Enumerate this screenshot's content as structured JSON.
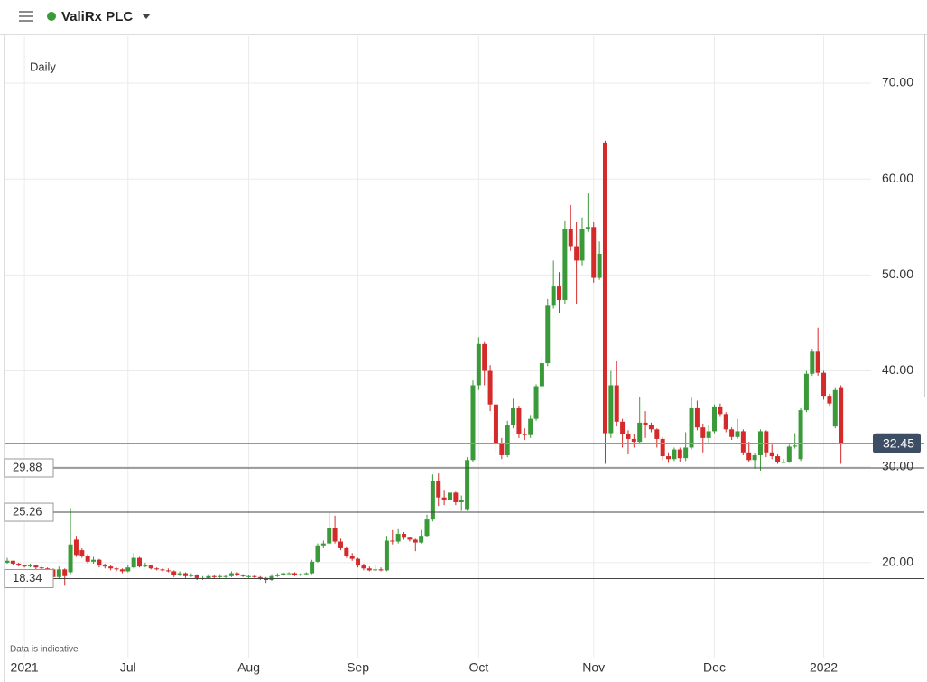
{
  "chart_data": {
    "type": "candlestick",
    "title": "ValiRx PLC",
    "subtitle": "Daily",
    "note": "Data is indicative",
    "up_color": "#3a9a3a",
    "down_color": "#d42a2a",
    "ylim": [
      10.1,
      74.9
    ],
    "yticks": [
      {
        "value": 20,
        "label": "20.00"
      },
      {
        "value": 30,
        "label": "30.00"
      },
      {
        "value": 40,
        "label": "40.00"
      },
      {
        "value": 50,
        "label": "50.00"
      },
      {
        "value": 60,
        "label": "60.00"
      },
      {
        "value": 70,
        "label": "70.00"
      }
    ],
    "grid": true,
    "last_price": 32.45,
    "price_lines": [
      29.88,
      25.26,
      18.34
    ],
    "categories": [
      null,
      null,
      null,
      "2021",
      null,
      null,
      null,
      null,
      null,
      null,
      null,
      null,
      null,
      null,
      null,
      null,
      null,
      null,
      null,
      null,
      null,
      "Jul",
      null,
      null,
      null,
      null,
      null,
      null,
      null,
      null,
      null,
      null,
      null,
      null,
      null,
      null,
      null,
      null,
      null,
      null,
      null,
      null,
      "Aug",
      null,
      null,
      null,
      null,
      null,
      null,
      null,
      null,
      null,
      null,
      null,
      null,
      null,
      null,
      null,
      null,
      null,
      null,
      "Sep",
      null,
      null,
      null,
      null,
      null,
      null,
      null,
      null,
      null,
      null,
      null,
      null,
      null,
      null,
      null,
      null,
      null,
      null,
      null,
      null,
      "Oct",
      null,
      null,
      null,
      null,
      null,
      null,
      null,
      null,
      null,
      null,
      null,
      null,
      null,
      null,
      null,
      null,
      null,
      null,
      null,
      "Nov",
      null,
      null,
      null,
      null,
      null,
      null,
      null,
      null,
      null,
      null,
      null,
      null,
      null,
      null,
      null,
      null,
      null,
      null,
      null,
      null,
      "Dec",
      null,
      null,
      null,
      null,
      null,
      null,
      null,
      null,
      null,
      null,
      null,
      null,
      null,
      null,
      null,
      null,
      null,
      null,
      "2022",
      null,
      null,
      null
    ],
    "candles": [
      [
        20.0,
        20.5,
        19.9,
        20.2
      ],
      [
        20.2,
        20.2,
        19.8,
        19.9
      ],
      [
        19.9,
        20.0,
        19.6,
        19.7
      ],
      [
        19.7,
        19.8,
        19.5,
        19.6
      ],
      [
        19.6,
        19.9,
        19.5,
        19.7
      ],
      [
        19.7,
        19.8,
        19.3,
        19.5
      ],
      [
        19.5,
        19.6,
        19.3,
        19.4
      ],
      [
        19.4,
        19.5,
        19.2,
        19.3
      ],
      [
        19.3,
        19.4,
        17.8,
        18.5
      ],
      [
        18.5,
        19.6,
        18.3,
        19.3
      ],
      [
        19.3,
        19.4,
        17.6,
        18.6
      ],
      [
        19.0,
        25.7,
        18.8,
        21.9
      ],
      [
        22.4,
        22.8,
        20.6,
        20.8
      ],
      [
        21.3,
        21.5,
        20.5,
        20.7
      ],
      [
        20.7,
        20.9,
        19.9,
        20.1
      ],
      [
        20.1,
        20.6,
        19.9,
        20.3
      ],
      [
        20.3,
        20.4,
        19.5,
        19.7
      ],
      [
        19.7,
        19.9,
        19.4,
        19.6
      ],
      [
        19.6,
        19.8,
        19.2,
        19.4
      ],
      [
        19.4,
        19.5,
        19.1,
        19.3
      ],
      [
        19.3,
        19.4,
        18.9,
        19.1
      ],
      [
        19.1,
        19.7,
        19.0,
        19.5
      ],
      [
        19.5,
        21.0,
        19.4,
        20.5
      ],
      [
        20.5,
        20.6,
        19.5,
        19.6
      ],
      [
        19.6,
        20.0,
        19.5,
        19.7
      ],
      [
        19.7,
        19.8,
        19.3,
        19.4
      ],
      [
        19.4,
        19.5,
        19.2,
        19.3
      ],
      [
        19.3,
        19.4,
        19.1,
        19.2
      ],
      [
        19.2,
        19.4,
        19.0,
        19.1
      ],
      [
        19.1,
        19.2,
        18.5,
        18.7
      ],
      [
        18.7,
        19.1,
        18.6,
        18.9
      ],
      [
        18.9,
        19.0,
        18.4,
        18.6
      ],
      [
        18.6,
        18.9,
        18.5,
        18.7
      ],
      [
        18.7,
        18.8,
        18.2,
        18.4
      ],
      [
        18.4,
        18.6,
        18.2,
        18.4
      ],
      [
        18.4,
        18.8,
        18.3,
        18.6
      ],
      [
        18.6,
        18.7,
        18.3,
        18.5
      ],
      [
        18.5,
        18.8,
        18.4,
        18.6
      ],
      [
        18.6,
        18.7,
        18.4,
        18.6
      ],
      [
        18.6,
        19.1,
        18.5,
        18.9
      ],
      [
        18.9,
        19.0,
        18.6,
        18.7
      ],
      [
        18.7,
        18.8,
        18.5,
        18.6
      ],
      [
        18.6,
        18.7,
        18.4,
        18.6
      ],
      [
        18.6,
        18.7,
        18.3,
        18.5
      ],
      [
        18.5,
        18.6,
        18.2,
        18.4
      ],
      [
        18.4,
        18.5,
        17.9,
        18.2
      ],
      [
        18.2,
        18.8,
        18.1,
        18.6
      ],
      [
        18.6,
        18.9,
        18.5,
        18.7
      ],
      [
        18.7,
        19.0,
        18.6,
        18.9
      ],
      [
        18.9,
        19.0,
        18.8,
        18.9
      ],
      [
        18.9,
        19.0,
        18.6,
        18.7
      ],
      [
        18.7,
        18.9,
        18.6,
        18.8
      ],
      [
        18.8,
        19.0,
        18.7,
        18.9
      ],
      [
        18.9,
        20.3,
        18.8,
        20.1
      ],
      [
        20.1,
        22.0,
        20.0,
        21.8
      ],
      [
        21.8,
        22.3,
        21.5,
        22.0
      ],
      [
        22.0,
        25.3,
        21.9,
        23.6
      ],
      [
        23.6,
        24.9,
        22.0,
        22.2
      ],
      [
        22.2,
        22.5,
        21.3,
        21.5
      ],
      [
        21.5,
        21.7,
        20.5,
        20.7
      ],
      [
        20.7,
        21.0,
        20.2,
        20.4
      ],
      [
        20.4,
        20.5,
        19.5,
        19.7
      ],
      [
        19.7,
        19.9,
        19.2,
        19.4
      ],
      [
        19.4,
        19.6,
        19.1,
        19.2
      ],
      [
        19.2,
        19.7,
        19.1,
        19.3
      ],
      [
        19.3,
        19.5,
        19.1,
        19.2
      ],
      [
        19.2,
        22.8,
        19.1,
        22.3
      ],
      [
        22.3,
        23.4,
        21.9,
        22.2
      ],
      [
        22.2,
        23.5,
        22.0,
        23.0
      ],
      [
        23.0,
        23.2,
        22.4,
        22.6
      ],
      [
        22.6,
        22.7,
        22.2,
        22.4
      ],
      [
        22.4,
        22.5,
        21.2,
        22.1
      ],
      [
        22.1,
        23.4,
        22.0,
        22.8
      ],
      [
        22.8,
        25.0,
        22.7,
        24.5
      ],
      [
        24.5,
        29.2,
        24.3,
        28.5
      ],
      [
        28.5,
        29.3,
        25.9,
        26.8
      ],
      [
        26.8,
        27.5,
        26.0,
        26.5
      ],
      [
        26.5,
        27.8,
        26.3,
        27.3
      ],
      [
        27.3,
        27.4,
        26.0,
        26.3
      ],
      [
        26.3,
        27.0,
        25.4,
        26.5
      ],
      [
        25.5,
        31.0,
        25.4,
        30.7
      ],
      [
        30.7,
        39.0,
        30.5,
        38.5
      ],
      [
        38.5,
        43.5,
        38.0,
        42.8
      ],
      [
        42.8,
        43.0,
        38.5,
        40.0
      ],
      [
        40.0,
        40.6,
        35.8,
        36.5
      ],
      [
        36.5,
        37.0,
        31.4,
        32.4
      ],
      [
        32.4,
        33.0,
        30.8,
        31.2
      ],
      [
        31.2,
        34.8,
        31.0,
        34.3
      ],
      [
        34.3,
        37.1,
        34.0,
        36.1
      ],
      [
        36.1,
        36.3,
        33.0,
        33.4
      ],
      [
        33.4,
        34.0,
        32.8,
        33.3
      ],
      [
        33.3,
        35.4,
        33.0,
        35.0
      ],
      [
        35.0,
        38.6,
        34.8,
        38.4
      ],
      [
        38.4,
        41.5,
        38.2,
        40.8
      ],
      [
        40.8,
        47.5,
        40.5,
        46.8
      ],
      [
        46.8,
        51.5,
        46.5,
        48.8
      ],
      [
        48.8,
        50.3,
        46.0,
        47.4
      ],
      [
        47.4,
        55.6,
        47.0,
        54.8
      ],
      [
        54.8,
        57.3,
        52.5,
        53.0
      ],
      [
        53.0,
        55.5,
        47.0,
        51.5
      ],
      [
        51.5,
        56.0,
        51.0,
        54.8
      ],
      [
        54.8,
        58.5,
        54.5,
        55.0
      ],
      [
        55.0,
        55.5,
        49.2,
        49.7
      ],
      [
        49.7,
        53.5,
        49.5,
        52.2
      ],
      [
        63.8,
        64.0,
        30.3,
        33.5
      ],
      [
        33.5,
        40.0,
        33.0,
        38.5
      ],
      [
        38.5,
        41.0,
        34.2,
        34.7
      ],
      [
        34.7,
        35.0,
        32.0,
        33.4
      ],
      [
        33.4,
        33.8,
        31.3,
        32.9
      ],
      [
        32.9,
        33.4,
        32.0,
        32.6
      ],
      [
        32.6,
        37.3,
        32.4,
        34.6
      ],
      [
        34.6,
        35.8,
        33.0,
        34.4
      ],
      [
        34.4,
        34.6,
        33.6,
        33.9
      ],
      [
        33.9,
        34.0,
        32.0,
        32.9
      ],
      [
        32.9,
        33.1,
        30.7,
        31.1
      ],
      [
        31.1,
        31.5,
        30.4,
        30.8
      ],
      [
        30.8,
        32.0,
        30.6,
        31.8
      ],
      [
        31.8,
        32.0,
        30.5,
        30.9
      ],
      [
        30.9,
        33.6,
        30.6,
        32.0
      ],
      [
        32.0,
        37.2,
        31.8,
        36.1
      ],
      [
        36.1,
        36.9,
        33.8,
        34.1
      ],
      [
        34.1,
        34.5,
        31.5,
        33.0
      ],
      [
        33.0,
        34.3,
        32.5,
        33.7
      ],
      [
        33.7,
        36.5,
        33.5,
        36.2
      ],
      [
        36.2,
        36.6,
        35.2,
        35.5
      ],
      [
        35.5,
        35.7,
        33.6,
        33.9
      ],
      [
        33.9,
        34.1,
        32.8,
        33.1
      ],
      [
        33.1,
        35.0,
        32.9,
        33.7
      ],
      [
        33.7,
        33.9,
        31.2,
        31.5
      ],
      [
        31.5,
        32.6,
        30.5,
        30.7
      ],
      [
        30.7,
        31.4,
        29.8,
        31.2
      ],
      [
        31.2,
        33.9,
        29.6,
        33.7
      ],
      [
        33.7,
        33.8,
        31.0,
        31.5
      ],
      [
        31.5,
        32.3,
        30.8,
        31.1
      ],
      [
        31.1,
        31.3,
        30.3,
        30.5
      ],
      [
        30.5,
        30.8,
        30.4,
        30.5
      ],
      [
        30.5,
        32.3,
        30.4,
        32.1
      ],
      [
        32.1,
        33.5,
        31.9,
        32.2
      ],
      [
        30.8,
        36.1,
        30.6,
        35.9
      ],
      [
        35.9,
        40.0,
        35.7,
        39.7
      ],
      [
        39.7,
        42.3,
        39.5,
        42.0
      ],
      [
        42.0,
        44.5,
        39.5,
        39.8
      ],
      [
        39.8,
        40.0,
        37.0,
        37.4
      ],
      [
        37.4,
        37.6,
        36.4,
        36.6
      ],
      [
        34.2,
        38.3,
        34.0,
        38.0
      ],
      [
        38.3,
        38.5,
        30.3,
        32.4
      ]
    ]
  }
}
